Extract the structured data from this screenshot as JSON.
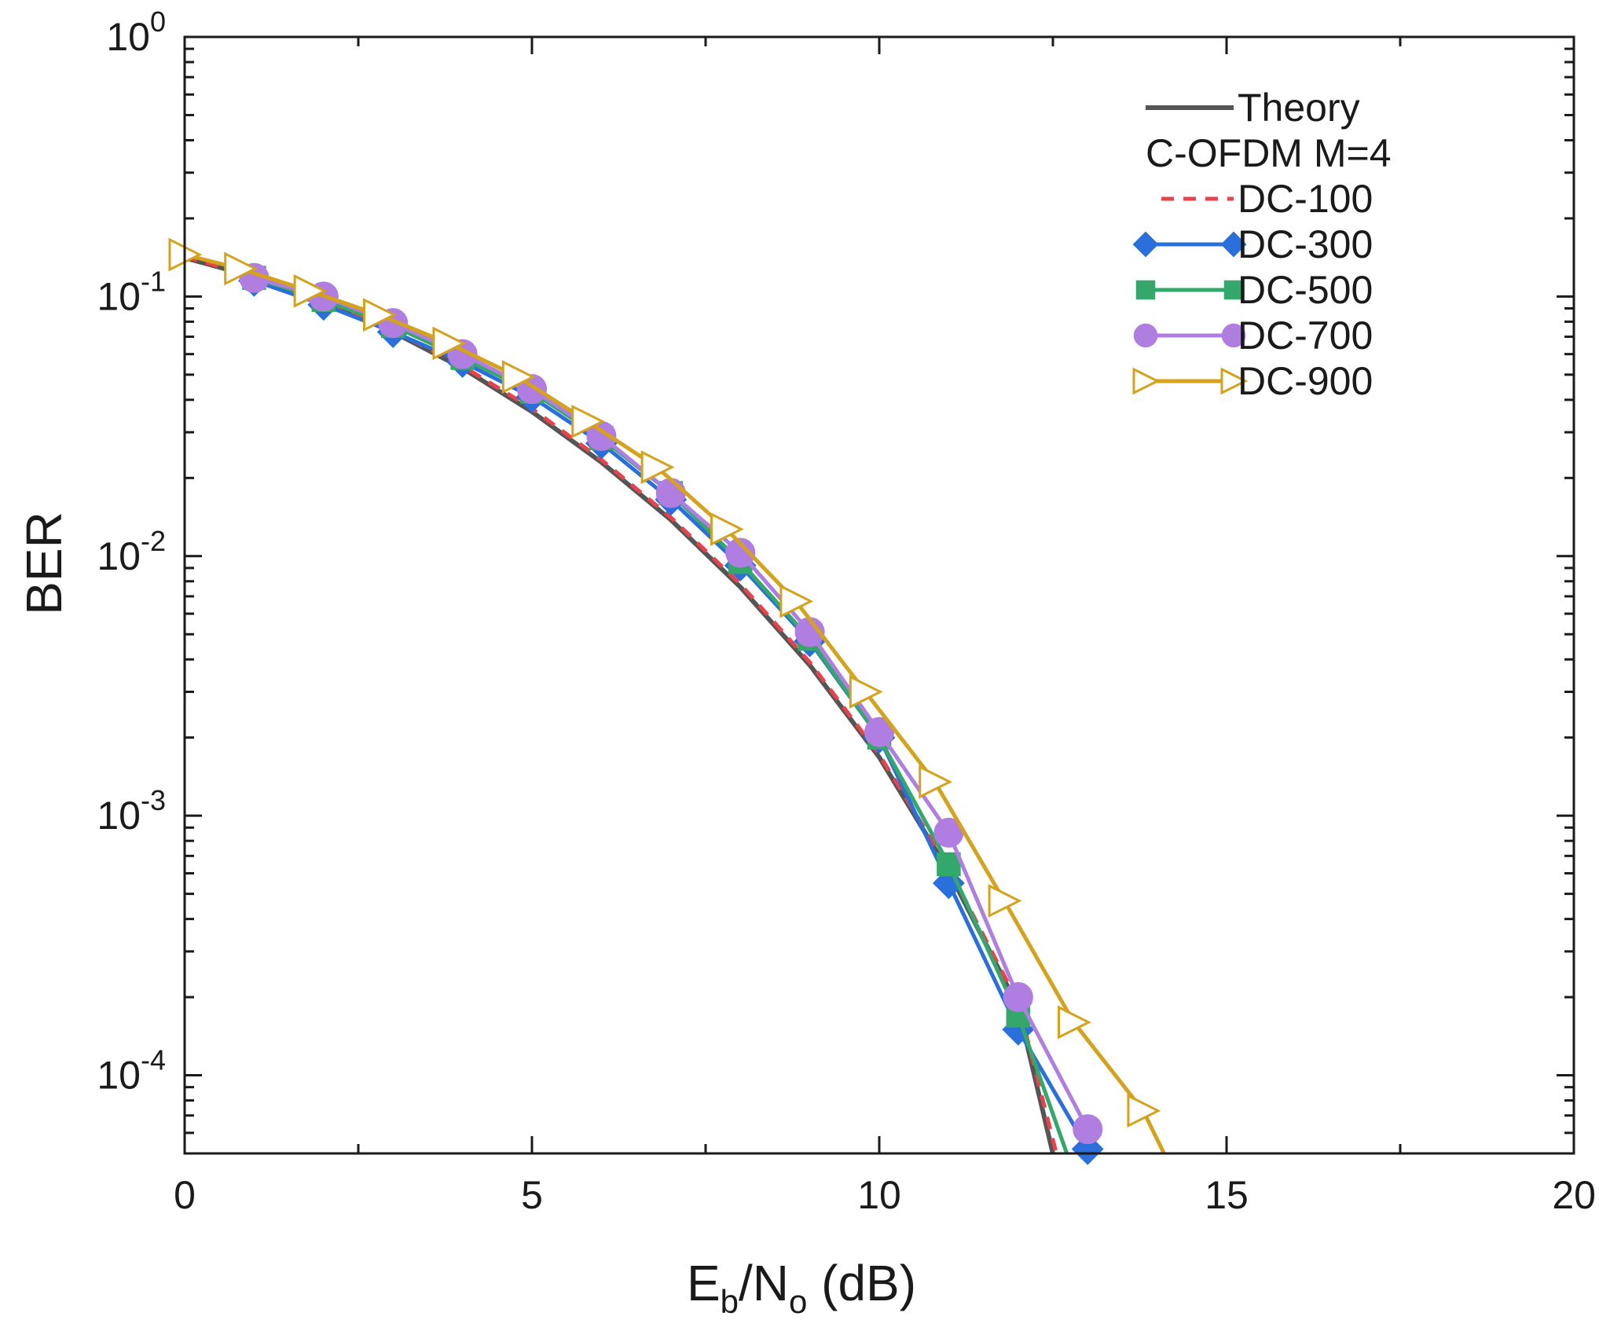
{
  "chart_data": {
    "type": "line",
    "title": "",
    "xlabel": {
      "main": "E",
      "sub1": "b",
      "mid": "/N",
      "sub2": "o",
      "tail": " (dB)"
    },
    "ylabel": "BER",
    "yscale": "log",
    "xlim": [
      0,
      20
    ],
    "ylim": [
      5e-05,
      1
    ],
    "x_ticks": [
      {
        "value": 0,
        "label": "0"
      },
      {
        "value": 5,
        "label": "5"
      },
      {
        "value": 10,
        "label": "10"
      },
      {
        "value": 15,
        "label": "15"
      },
      {
        "value": 20,
        "label": "20"
      }
    ],
    "y_ticks": [
      {
        "value": 1,
        "base": "10",
        "exp": "0"
      },
      {
        "value": 0.1,
        "base": "10",
        "exp": "-1"
      },
      {
        "value": 0.01,
        "base": "10",
        "exp": "-2"
      },
      {
        "value": 0.001,
        "base": "10",
        "exp": "-3"
      },
      {
        "value": 0.0001,
        "base": "10",
        "exp": "-4"
      }
    ],
    "legend": {
      "position": "top-right",
      "subtitle": "C-OFDM M=4"
    },
    "series": [
      {
        "name": "Theory",
        "color": "#555555",
        "dashed": false,
        "marker": "none",
        "x": [
          0,
          1,
          2,
          3,
          4,
          5,
          6,
          7,
          8,
          9,
          10,
          11,
          12,
          12.5
        ],
        "y": [
          0.141,
          0.119,
          0.095,
          0.073,
          0.053,
          0.036,
          0.023,
          0.0138,
          0.0076,
          0.0038,
          0.00168,
          0.00061,
          0.000183,
          5e-05
        ]
      },
      {
        "name": "DC-100",
        "color": "#e8424c",
        "dashed": true,
        "marker": "none",
        "x": [
          0,
          1,
          2,
          3,
          4,
          5,
          6,
          7,
          8,
          9,
          10,
          11,
          12,
          12.55
        ],
        "y": [
          0.142,
          0.12,
          0.096,
          0.074,
          0.054,
          0.037,
          0.0235,
          0.0141,
          0.0078,
          0.0039,
          0.00172,
          0.00063,
          0.00019,
          5e-05
        ]
      },
      {
        "name": "DC-300",
        "color": "#2a6fdb",
        "dashed": false,
        "marker": "diamond",
        "x": [
          1,
          2,
          3,
          4,
          5,
          6,
          7,
          8,
          9,
          10,
          11,
          12,
          13
        ],
        "y": [
          0.115,
          0.093,
          0.073,
          0.056,
          0.041,
          0.0272,
          0.0165,
          0.0092,
          0.0047,
          0.002,
          0.00055,
          0.00015,
          5.2e-05
        ]
      },
      {
        "name": "DC-500",
        "color": "#34a86a",
        "dashed": false,
        "marker": "square",
        "x": [
          1,
          2,
          3,
          4,
          5,
          6,
          7,
          8,
          9,
          10,
          11,
          12,
          12.7
        ],
        "y": [
          0.118,
          0.097,
          0.077,
          0.058,
          0.043,
          0.0285,
          0.0175,
          0.0095,
          0.0048,
          0.002,
          0.00065,
          0.00017,
          5e-05
        ]
      },
      {
        "name": "DC-700",
        "color": "#b07ee0",
        "dashed": false,
        "marker": "circle",
        "x": [
          1,
          2,
          3,
          4,
          5,
          6,
          7,
          8,
          9,
          10,
          11,
          12,
          13
        ],
        "y": [
          0.118,
          0.1,
          0.079,
          0.06,
          0.044,
          0.029,
          0.0175,
          0.0103,
          0.0051,
          0.0021,
          0.00086,
          0.0002,
          6.2e-05
        ]
      },
      {
        "name": "DC-900",
        "color": "#d4a21c",
        "dashed": false,
        "marker": "triangle-right",
        "x": [
          0,
          0.8,
          1.8,
          2.8,
          3.8,
          4.8,
          5.8,
          6.8,
          7.8,
          8.8,
          9.8,
          10.8,
          11.8,
          12.8,
          13.8,
          14.1
        ],
        "y": [
          0.145,
          0.128,
          0.105,
          0.085,
          0.066,
          0.049,
          0.033,
          0.022,
          0.0127,
          0.0067,
          0.003,
          0.00135,
          0.00047,
          0.00016,
          7.3e-05,
          5e-05
        ]
      }
    ]
  }
}
